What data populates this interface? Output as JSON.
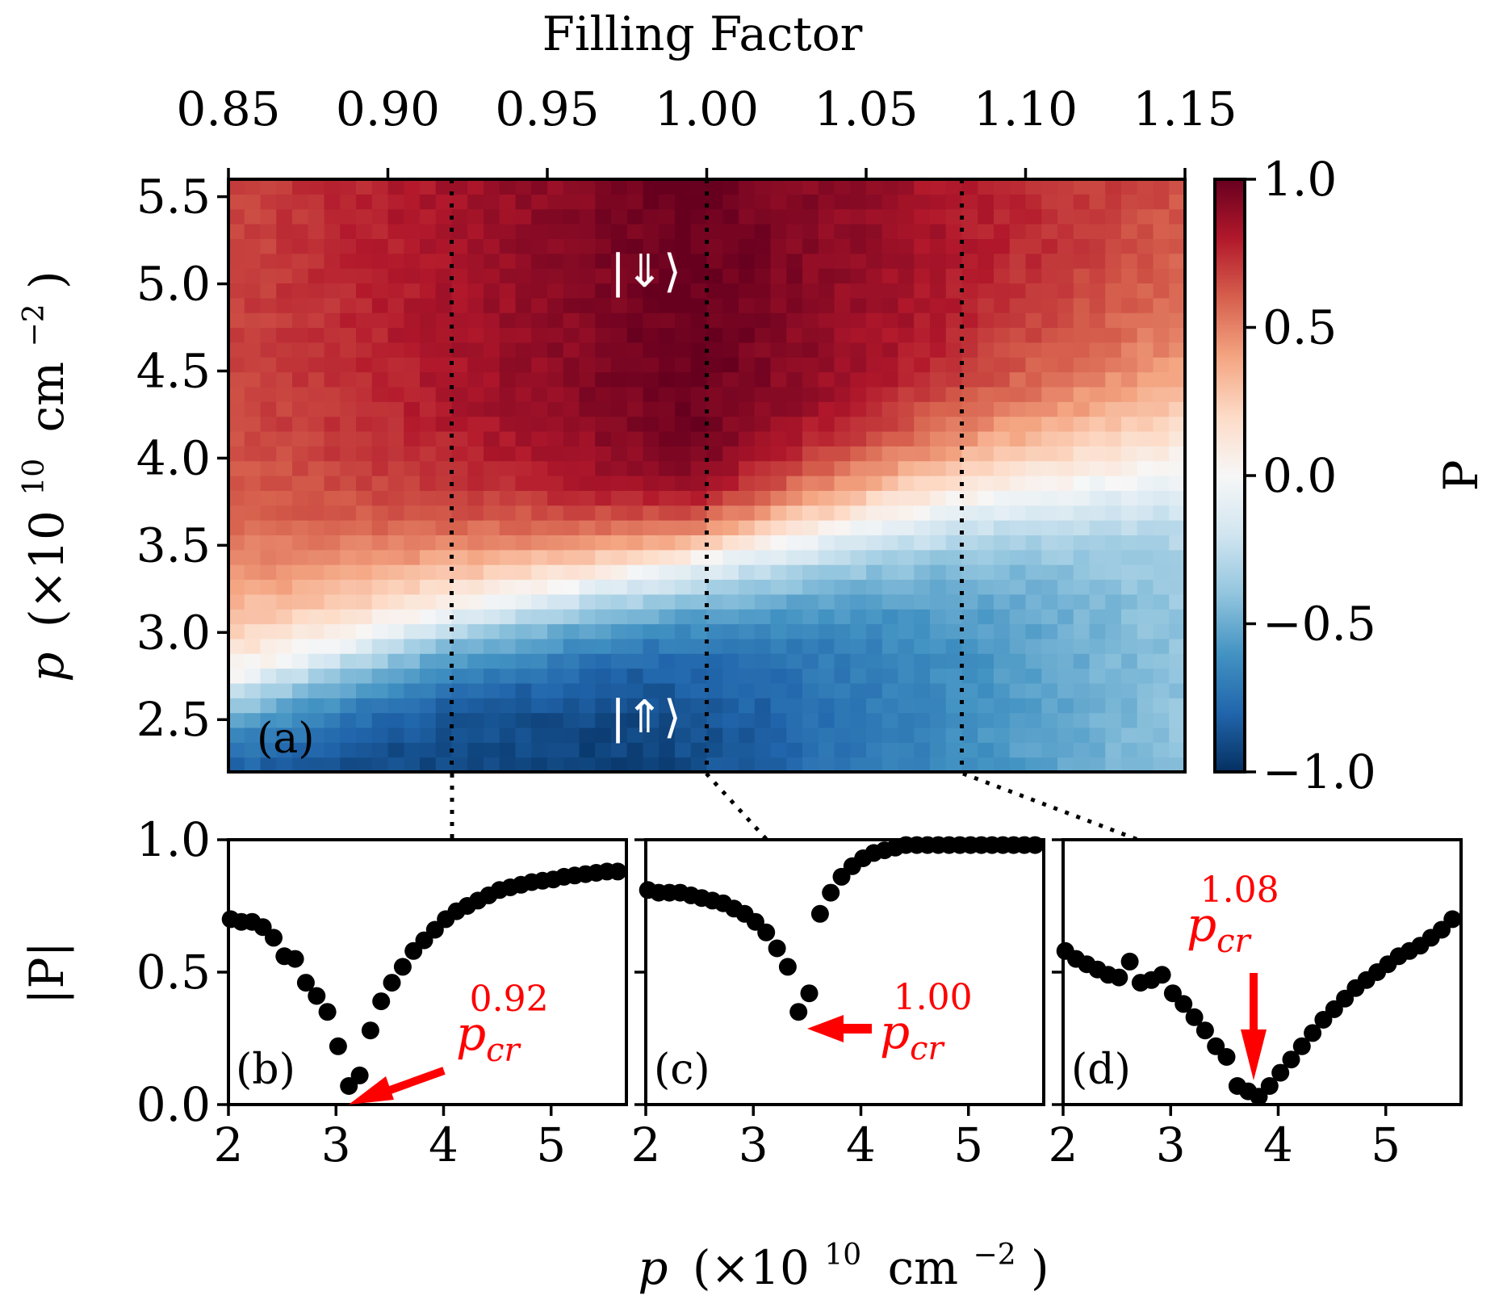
{
  "chart_data": [
    {
      "id": "a",
      "type": "heatmap",
      "panel_label": "(a)",
      "top_axis_title": "Filling Factor",
      "top_ticks": [
        "0.85",
        "0.90",
        "0.95",
        "1.00",
        "1.05",
        "1.10",
        "1.15"
      ],
      "top_tick_values": [
        0.85,
        0.9,
        0.95,
        1.0,
        1.05,
        1.1,
        1.15
      ],
      "xlim": [
        0.85,
        1.15
      ],
      "ylabel": "p (×10^10 cm^−2)",
      "ylabel_parts": {
        "var": "p",
        "open": "(×10",
        "exp": "10",
        "unit": "cm",
        "unit_exp": "−2",
        "close": ")"
      },
      "y_ticks": [
        "2.5",
        "3.0",
        "3.5",
        "4.0",
        "4.5",
        "5.0",
        "5.5"
      ],
      "y_tick_values": [
        2.5,
        3.0,
        3.5,
        4.0,
        4.5,
        5.0,
        5.5
      ],
      "ylim": [
        2.2,
        5.6
      ],
      "colorbar": {
        "label": "P",
        "ticks": [
          "1.0",
          "0.5",
          "0.0",
          "−0.5",
          "−1.0"
        ],
        "tick_values": [
          1.0,
          0.5,
          0.0,
          -0.5,
          -1.0
        ],
        "range": [
          -1.0,
          1.0
        ],
        "colormap": "RdBu_r",
        "color_stops": [
          "#053061",
          "#2166ac",
          "#4393c3",
          "#92c5de",
          "#d1e5f0",
          "#f7f7f7",
          "#fddbc7",
          "#f4a582",
          "#d6604d",
          "#b2182b",
          "#67001f"
        ]
      },
      "state_labels": {
        "top": "|⇓⟩",
        "bottom": "|⇑⟩"
      },
      "cut_lines_filling_factor": [
        0.92,
        1.0,
        1.08
      ],
      "transition_line": {
        "filling_factor": [
          0.85,
          0.92,
          1.0,
          1.08,
          1.15
        ],
        "p": [
          2.75,
          3.15,
          3.42,
          3.75,
          3.95
        ]
      }
    },
    {
      "id": "b",
      "type": "scatter",
      "panel_label": "(b)",
      "filling_factor": 0.92,
      "ylabel": "|P|",
      "y_ticks": [
        "0.0",
        "0.5",
        "1.0"
      ],
      "ylim": [
        0,
        1
      ],
      "x_ticks": [
        "2",
        "3",
        "4",
        "5"
      ],
      "xlim": [
        2.0,
        5.7
      ],
      "annotation": {
        "base": "p",
        "sub": "cr",
        "sup": "0.92",
        "points_to": [
          3.1,
          0.0
        ]
      },
      "x": [
        2.02,
        2.12,
        2.22,
        2.32,
        2.42,
        2.52,
        2.62,
        2.72,
        2.82,
        2.92,
        3.02,
        3.12,
        3.22,
        3.32,
        3.42,
        3.52,
        3.62,
        3.72,
        3.82,
        3.92,
        4.02,
        4.12,
        4.22,
        4.32,
        4.42,
        4.52,
        4.62,
        4.72,
        4.82,
        4.92,
        5.02,
        5.12,
        5.22,
        5.32,
        5.42,
        5.52,
        5.62
      ],
      "y": [
        0.7,
        0.69,
        0.69,
        0.67,
        0.63,
        0.56,
        0.55,
        0.46,
        0.41,
        0.35,
        0.22,
        0.07,
        0.11,
        0.28,
        0.39,
        0.46,
        0.52,
        0.58,
        0.62,
        0.66,
        0.7,
        0.73,
        0.75,
        0.77,
        0.79,
        0.81,
        0.82,
        0.83,
        0.84,
        0.845,
        0.85,
        0.86,
        0.865,
        0.87,
        0.875,
        0.88,
        0.88
      ]
    },
    {
      "id": "c",
      "type": "scatter",
      "panel_label": "(c)",
      "filling_factor": 1.0,
      "ylim": [
        0,
        1
      ],
      "x_ticks": [
        "2",
        "3",
        "4",
        "5"
      ],
      "xlim": [
        2.0,
        5.7
      ],
      "annotation": {
        "base": "p",
        "sub": "cr",
        "sup": "1.00",
        "points_to": [
          3.5,
          0.29
        ]
      },
      "x": [
        2.02,
        2.12,
        2.22,
        2.32,
        2.42,
        2.52,
        2.62,
        2.72,
        2.82,
        2.92,
        3.02,
        3.12,
        3.22,
        3.32,
        3.42,
        3.52,
        3.62,
        3.72,
        3.82,
        3.92,
        4.02,
        4.12,
        4.22,
        4.32,
        4.42,
        4.52,
        4.62,
        4.72,
        4.82,
        4.92,
        5.02,
        5.12,
        5.22,
        5.32,
        5.42,
        5.52,
        5.62
      ],
      "y": [
        0.81,
        0.8,
        0.8,
        0.8,
        0.79,
        0.78,
        0.77,
        0.76,
        0.74,
        0.72,
        0.69,
        0.65,
        0.59,
        0.52,
        0.35,
        0.42,
        0.72,
        0.8,
        0.86,
        0.9,
        0.93,
        0.95,
        0.96,
        0.97,
        0.98,
        0.98,
        0.98,
        0.98,
        0.98,
        0.98,
        0.98,
        0.98,
        0.98,
        0.98,
        0.98,
        0.98,
        0.98
      ]
    },
    {
      "id": "d",
      "type": "scatter",
      "panel_label": "(d)",
      "filling_factor": 1.08,
      "ylim": [
        0,
        1
      ],
      "x_ticks": [
        "2",
        "3",
        "4",
        "5"
      ],
      "xlim": [
        2.0,
        5.7
      ],
      "annotation": {
        "base": "p",
        "sub": "cr",
        "sup": "1.08",
        "points_to": [
          3.8,
          0.04
        ]
      },
      "x": [
        2.02,
        2.12,
        2.22,
        2.32,
        2.42,
        2.52,
        2.62,
        2.72,
        2.82,
        2.92,
        3.02,
        3.12,
        3.22,
        3.32,
        3.42,
        3.52,
        3.62,
        3.72,
        3.82,
        3.92,
        4.02,
        4.12,
        4.22,
        4.32,
        4.42,
        4.52,
        4.62,
        4.72,
        4.82,
        4.92,
        5.02,
        5.12,
        5.22,
        5.32,
        5.42,
        5.52,
        5.62
      ],
      "y": [
        0.58,
        0.55,
        0.53,
        0.51,
        0.49,
        0.48,
        0.54,
        0.46,
        0.47,
        0.49,
        0.42,
        0.38,
        0.33,
        0.28,
        0.22,
        0.18,
        0.07,
        0.05,
        0.03,
        0.07,
        0.12,
        0.17,
        0.22,
        0.27,
        0.32,
        0.36,
        0.4,
        0.44,
        0.47,
        0.5,
        0.53,
        0.56,
        0.58,
        0.6,
        0.63,
        0.66,
        0.7
      ]
    }
  ],
  "shared_xlabel": {
    "var": "p",
    "open": "(×10",
    "exp": "10",
    "unit": "cm",
    "unit_exp": "−2",
    "close": ")"
  }
}
